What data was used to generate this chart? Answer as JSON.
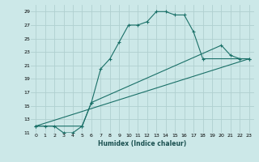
{
  "xlabel": "Humidex (Indice chaleur)",
  "bg_color": "#cce8e8",
  "grid_color": "#b0d0d0",
  "line_color": "#1a7068",
  "xlim": [
    -0.5,
    23.5
  ],
  "ylim": [
    11,
    30
  ],
  "xticks": [
    0,
    1,
    2,
    3,
    4,
    5,
    6,
    7,
    8,
    9,
    10,
    11,
    12,
    13,
    14,
    15,
    16,
    17,
    18,
    19,
    20,
    21,
    22,
    23
  ],
  "yticks": [
    11,
    13,
    15,
    17,
    19,
    21,
    23,
    25,
    27,
    29
  ],
  "line1_x": [
    0,
    1,
    2,
    3,
    4,
    5,
    6,
    7,
    8,
    9,
    10,
    11,
    12,
    13,
    14,
    15,
    16,
    17,
    18,
    23
  ],
  "line1_y": [
    12,
    12,
    12,
    11,
    11,
    12,
    15.5,
    20.5,
    22,
    24.5,
    27,
    27,
    27.5,
    29,
    29,
    28.5,
    28.5,
    26,
    22,
    22
  ],
  "line2_x": [
    0,
    5,
    6,
    20,
    21,
    22,
    23
  ],
  "line2_y": [
    12,
    12,
    15.5,
    24,
    22.5,
    22,
    22
  ],
  "line3_x": [
    0,
    23
  ],
  "line3_y": [
    12,
    22
  ]
}
